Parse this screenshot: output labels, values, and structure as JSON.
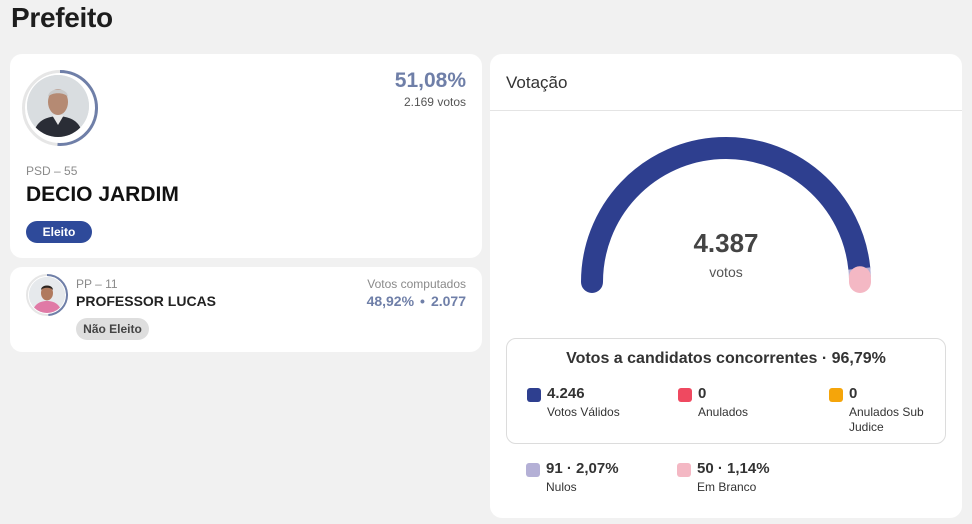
{
  "page": {
    "title": "Prefeito"
  },
  "winner": {
    "party": "PSD – 55",
    "name": "DECIO JARDIM",
    "percent": "51,08%",
    "votes": "2.169 votos",
    "status": "Eleito",
    "vote_share": 51.08
  },
  "loser": {
    "party": "PP – 11",
    "name": "PROFESSOR LUCAS",
    "votes_label": "Votos computados",
    "percent": "48,92%",
    "separator": "•",
    "votes": "2.077",
    "status": "Não Eleito",
    "vote_share": 48.92
  },
  "votacao": {
    "title": "Votação",
    "total": "4.387",
    "total_unit": "votos",
    "gauge_segments": [
      {
        "key": "validos",
        "value": 4246,
        "color": "#2e3f8f"
      },
      {
        "key": "nulos",
        "value": 91,
        "color": "#b4b0d6"
      },
      {
        "key": "branco",
        "value": 50,
        "color": "#f4b8c4"
      }
    ],
    "candidates_box": {
      "title": "Votos a candidatos concorrentes · 96,79%",
      "items": [
        {
          "value": "4.246",
          "label": "Votos Válidos",
          "color": "#2e3f8f"
        },
        {
          "value": "0",
          "label": "Anulados",
          "color": "#ef4960"
        },
        {
          "value": "0",
          "label": "Anulados Sub Judice",
          "color": "#f5a50a"
        }
      ]
    },
    "other": [
      {
        "value": "91 · 2,07%",
        "label": "Nulos",
        "color": "#b4b0d6"
      },
      {
        "value": "50 · 1,14%",
        "label": "Em Branco",
        "color": "#f4b8c4"
      }
    ]
  },
  "colors": {
    "ring": "#6f7fa8",
    "ring_track": "#e6e6e6"
  }
}
